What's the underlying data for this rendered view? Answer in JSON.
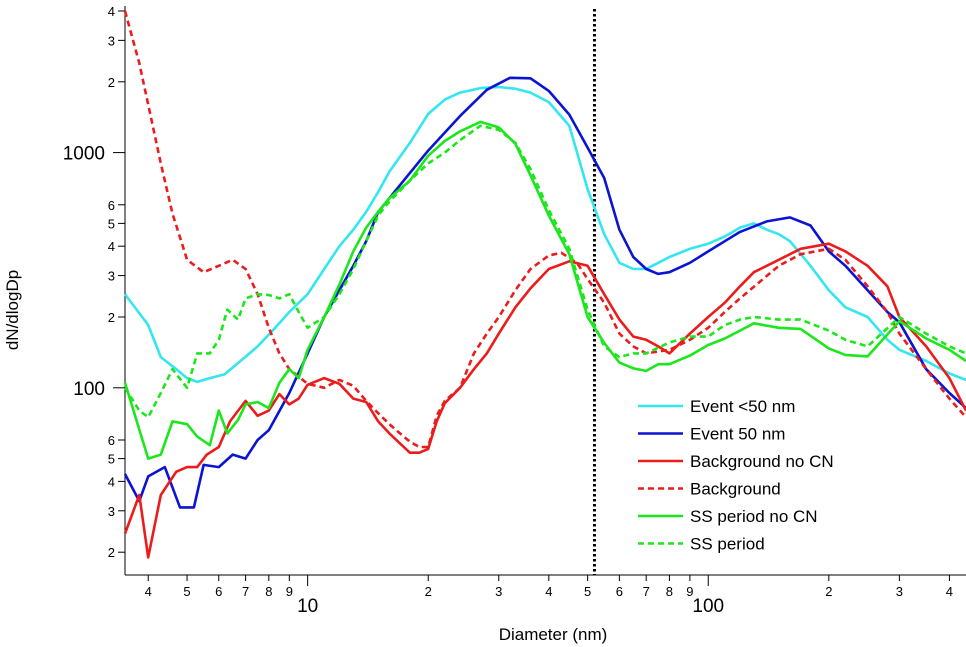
{
  "chart_data": {
    "type": "line",
    "title": "",
    "xlabel": "Diameter (nm)",
    "ylabel": "dN/dlogDp",
    "x_scale": "log",
    "y_scale": "log",
    "xlim": [
      3.5,
      440
    ],
    "ylim": [
      16,
      4200
    ],
    "x_major_ticks": [
      {
        "value": 10,
        "label": "10"
      },
      {
        "value": 100,
        "label": "100"
      }
    ],
    "x_minor_ticks": [
      {
        "value": 4,
        "label": "4"
      },
      {
        "value": 5,
        "label": "5"
      },
      {
        "value": 6,
        "label": "6"
      },
      {
        "value": 7,
        "label": "7"
      },
      {
        "value": 8,
        "label": "8"
      },
      {
        "value": 9,
        "label": "9"
      },
      {
        "value": 20,
        "label": "2"
      },
      {
        "value": 30,
        "label": "3"
      },
      {
        "value": 40,
        "label": "4"
      },
      {
        "value": 50,
        "label": "5"
      },
      {
        "value": 60,
        "label": "6"
      },
      {
        "value": 70,
        "label": "7"
      },
      {
        "value": 80,
        "label": "8"
      },
      {
        "value": 90,
        "label": "9"
      },
      {
        "value": 200,
        "label": "2"
      },
      {
        "value": 300,
        "label": "3"
      },
      {
        "value": 400,
        "label": "4"
      }
    ],
    "y_major_ticks": [
      {
        "value": 100,
        "label": "100"
      },
      {
        "value": 1000,
        "label": "1000"
      }
    ],
    "y_minor_ticks": [
      {
        "value": 20,
        "label": "2"
      },
      {
        "value": 30,
        "label": "3"
      },
      {
        "value": 40,
        "label": "4"
      },
      {
        "value": 50,
        "label": "5"
      },
      {
        "value": 60,
        "label": "6"
      },
      {
        "value": 200,
        "label": "2"
      },
      {
        "value": 300,
        "label": "3"
      },
      {
        "value": 400,
        "label": "4"
      },
      {
        "value": 500,
        "label": "5"
      },
      {
        "value": 600,
        "label": "6"
      },
      {
        "value": 2000,
        "label": "2"
      },
      {
        "value": 3000,
        "label": "3"
      },
      {
        "value": 4000,
        "label": "4"
      }
    ],
    "vertical_line": {
      "x": 52,
      "style": "dotted",
      "color": "#000000"
    },
    "grid": false,
    "legend_position": "bottom-right",
    "series": [
      {
        "name": "Event <50 nm",
        "color": "#33e6f0",
        "dash": "solid",
        "x": [
          3.5,
          4,
          4.3,
          4.7,
          5,
          5.3,
          5.7,
          6.2,
          6.8,
          7.5,
          8.3,
          9,
          10,
          11,
          12,
          13,
          14,
          15,
          16,
          18,
          20,
          22,
          24,
          27,
          30,
          33,
          36,
          40,
          45,
          50,
          55,
          60,
          65,
          70,
          75,
          80,
          90,
          100,
          110,
          120,
          130,
          140,
          150,
          160,
          180,
          200,
          220,
          250,
          280,
          300,
          350,
          400,
          440
        ],
        "y": [
          250,
          185,
          135,
          120,
          110,
          106,
          110,
          114,
          130,
          150,
          180,
          210,
          250,
          320,
          400,
          470,
          560,
          680,
          830,
          1100,
          1460,
          1680,
          1800,
          1880,
          1900,
          1870,
          1800,
          1640,
          1300,
          700,
          450,
          340,
          320,
          320,
          340,
          360,
          390,
          410,
          440,
          480,
          500,
          470,
          450,
          420,
          330,
          260,
          220,
          200,
          160,
          145,
          130,
          115,
          108
        ]
      },
      {
        "name": "Event 50 nm",
        "color": "#0a14d2",
        "dash": "solid",
        "x": [
          3.5,
          3.8,
          4,
          4.4,
          4.8,
          5.2,
          5.5,
          6,
          6.5,
          7,
          7.5,
          8,
          9,
          10,
          11,
          12,
          13,
          14,
          15,
          16,
          18,
          20,
          24,
          28,
          32,
          36,
          40,
          45,
          50,
          55,
          60,
          65,
          70,
          75,
          80,
          90,
          100,
          110,
          120,
          140,
          160,
          180,
          200,
          220,
          250,
          280,
          300,
          350,
          400,
          440
        ],
        "y": [
          43,
          33,
          42,
          46,
          31,
          31,
          47,
          46,
          52,
          50,
          60,
          66,
          95,
          140,
          200,
          260,
          330,
          420,
          560,
          640,
          820,
          1020,
          1430,
          1850,
          2080,
          2070,
          1830,
          1450,
          1050,
          780,
          470,
          360,
          320,
          305,
          310,
          340,
          380,
          420,
          460,
          510,
          530,
          490,
          380,
          330,
          260,
          210,
          190,
          120,
          95,
          82
        ]
      },
      {
        "name": "Background no CN",
        "color": "#ec1c1c",
        "dash": "solid",
        "x": [
          3.5,
          3.8,
          4,
          4.3,
          4.7,
          5,
          5.3,
          5.6,
          6,
          6.4,
          7,
          7.5,
          8,
          8.5,
          9,
          9.5,
          10,
          11,
          12,
          13,
          14,
          15,
          16,
          17,
          18,
          19,
          20,
          21,
          22,
          24,
          26,
          28,
          30,
          33,
          36,
          40,
          45,
          50,
          55,
          60,
          65,
          70,
          75,
          80,
          90,
          100,
          110,
          120,
          130,
          150,
          170,
          200,
          220,
          250,
          280,
          300,
          350,
          400,
          440
        ],
        "y": [
          24,
          35,
          19,
          35,
          44,
          46,
          46,
          52,
          56,
          72,
          88,
          76,
          80,
          94,
          85,
          90,
          103,
          110,
          104,
          90,
          87,
          72,
          64,
          58,
          53,
          53,
          55,
          72,
          86,
          100,
          120,
          140,
          170,
          220,
          265,
          320,
          345,
          330,
          250,
          195,
          165,
          160,
          150,
          140,
          170,
          200,
          230,
          270,
          310,
          350,
          390,
          410,
          380,
          330,
          270,
          200,
          150,
          110,
          80
        ]
      },
      {
        "name": "Background",
        "color": "#ec1c1c",
        "dash": "dashed",
        "x": [
          3.5,
          3.8,
          4,
          4.3,
          4.6,
          5,
          5.5,
          6,
          6.5,
          7,
          7.5,
          8,
          8.5,
          9,
          10,
          11,
          12,
          13,
          14,
          15,
          16,
          17,
          18,
          19,
          20,
          21,
          22,
          24,
          26,
          28,
          30,
          33,
          36,
          40,
          43,
          47,
          50,
          55,
          60,
          65,
          70,
          80,
          90,
          100,
          110,
          120,
          150,
          170,
          200,
          220,
          250,
          280,
          300,
          350,
          400,
          440
        ],
        "y": [
          4000,
          2400,
          1600,
          900,
          550,
          350,
          310,
          330,
          350,
          320,
          250,
          180,
          140,
          120,
          104,
          100,
          108,
          102,
          88,
          78,
          70,
          64,
          59,
          56,
          56,
          76,
          88,
          100,
          140,
          170,
          200,
          260,
          320,
          365,
          375,
          340,
          290,
          230,
          170,
          150,
          140,
          145,
          160,
          180,
          210,
          240,
          330,
          370,
          390,
          350,
          270,
          210,
          170,
          120,
          90,
          75
        ]
      },
      {
        "name": "SS period no CN",
        "color": "#1ce61c",
        "dash": "solid",
        "x": [
          3.5,
          4,
          4.3,
          4.6,
          5,
          5.3,
          5.7,
          6,
          6.3,
          6.7,
          7,
          7.5,
          8,
          8.5,
          9,
          9.5,
          10,
          11,
          12,
          13,
          14,
          15,
          16,
          18,
          20,
          22,
          24,
          27,
          30,
          33,
          36,
          40,
          45,
          50,
          55,
          60,
          65,
          70,
          75,
          80,
          90,
          100,
          110,
          120,
          130,
          150,
          170,
          200,
          220,
          250,
          300,
          350,
          400,
          440
        ],
        "y": [
          105,
          50,
          52,
          72,
          70,
          62,
          57,
          80,
          64,
          73,
          85,
          87,
          82,
          105,
          120,
          110,
          145,
          200,
          275,
          380,
          480,
          560,
          640,
          760,
          970,
          1120,
          1230,
          1350,
          1280,
          1090,
          800,
          540,
          370,
          200,
          155,
          128,
          121,
          118,
          126,
          126,
          137,
          152,
          162,
          175,
          188,
          180,
          178,
          147,
          138,
          136,
          192,
          162,
          145,
          130
        ]
      },
      {
        "name": "SS period",
        "color": "#1ce61c",
        "dash": "dashed",
        "x": [
          3.5,
          3.8,
          4,
          4.3,
          4.6,
          5,
          5.3,
          5.7,
          6,
          6.3,
          6.7,
          7,
          7.5,
          8,
          8.5,
          9,
          9.5,
          10,
          11,
          12,
          13,
          14,
          15,
          16,
          18,
          20,
          22,
          24,
          27,
          30,
          33,
          36,
          40,
          45,
          50,
          55,
          60,
          65,
          70,
          75,
          80,
          90,
          100,
          110,
          120,
          130,
          150,
          170,
          200,
          220,
          250,
          300,
          350,
          400,
          440
        ],
        "y": [
          100,
          80,
          75,
          95,
          120,
          100,
          140,
          140,
          160,
          215,
          195,
          240,
          250,
          248,
          240,
          250,
          210,
          180,
          200,
          250,
          320,
          420,
          540,
          620,
          760,
          900,
          1000,
          1130,
          1300,
          1250,
          1100,
          850,
          570,
          390,
          215,
          150,
          135,
          140,
          140,
          148,
          156,
          165,
          165,
          185,
          195,
          200,
          195,
          195,
          175,
          160,
          150,
          200,
          170,
          150,
          140
        ]
      }
    ]
  }
}
